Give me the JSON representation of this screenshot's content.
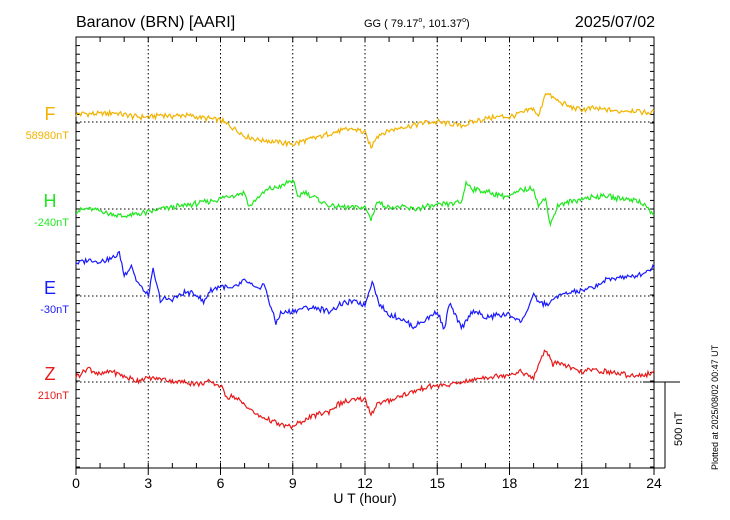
{
  "header": {
    "station": "Baranov (BRN)  [AARI]",
    "coords_prefix": "GG ( 79.17",
    "coords_sep": ", 101.37",
    "coords_suffix": ")",
    "degree_mark": "o",
    "date": "2025/07/02"
  },
  "footer": {
    "plotted_note": "Plotted at 2025/08/02 00:47 UT",
    "scale_label": "500 nT"
  },
  "chart_data": {
    "type": "line",
    "title": "Baranov (BRN)  [AARI]",
    "xlabel": "U T (hour)",
    "ylabel": "",
    "xlim": [
      0,
      24
    ],
    "x_ticks": [
      "0",
      "3",
      "6",
      "9",
      "12",
      "15",
      "18",
      "21",
      "24"
    ],
    "grid": true,
    "scale_bar_nT": 500,
    "series": [
      {
        "name": "F",
        "baseline_label": "58980nT",
        "baseline_nT": 58980,
        "color": "#f2b300",
        "x": [
          0,
          0.5,
          1,
          1.5,
          2,
          2.5,
          3,
          3.5,
          4,
          4.5,
          5,
          5.5,
          6,
          6.5,
          7,
          7.5,
          8,
          8.5,
          9,
          9.5,
          10,
          10.5,
          11,
          11.5,
          12,
          12.25,
          12.5,
          13,
          13.5,
          14,
          14.5,
          15,
          15.5,
          16,
          16.5,
          17,
          17.5,
          18,
          18.5,
          19,
          19.2,
          19.5,
          20,
          20.5,
          21,
          21.5,
          22,
          22.5,
          23,
          23.5,
          24
        ],
        "y": [
          45,
          50,
          45,
          55,
          40,
          30,
          30,
          40,
          35,
          40,
          30,
          20,
          10,
          -30,
          -80,
          -100,
          -110,
          -120,
          -130,
          -110,
          -90,
          -70,
          -50,
          -40,
          -60,
          -150,
          -80,
          -50,
          -30,
          -20,
          0,
          0,
          -10,
          -20,
          0,
          20,
          30,
          30,
          50,
          80,
          30,
          170,
          120,
          90,
          70,
          80,
          70,
          60,
          70,
          60,
          55
        ]
      },
      {
        "name": "H",
        "baseline_label": "-240nT",
        "baseline_nT": -240,
        "color": "#1fe81f",
        "x": [
          0,
          0.5,
          1,
          1.5,
          2,
          2.5,
          3,
          3.5,
          4,
          4.5,
          5,
          5.5,
          6,
          6.5,
          7,
          7.2,
          7.5,
          8,
          8.5,
          9,
          9.2,
          9.5,
          10,
          10.5,
          11,
          11.5,
          12,
          12.25,
          12.5,
          13,
          13.5,
          14,
          14.5,
          15,
          15.5,
          16,
          16.2,
          16.5,
          17,
          17.5,
          18,
          18.5,
          19,
          19.2,
          19.5,
          19.7,
          20,
          20.5,
          21,
          21.5,
          22,
          22.5,
          23,
          23.5,
          24
        ],
        "y": [
          -10,
          0,
          -10,
          -30,
          -45,
          -30,
          -20,
          0,
          10,
          20,
          30,
          45,
          60,
          80,
          95,
          10,
          60,
          115,
          130,
          170,
          70,
          100,
          60,
          20,
          10,
          10,
          10,
          -60,
          40,
          10,
          10,
          0,
          10,
          20,
          30,
          40,
          150,
          115,
          100,
          85,
          70,
          110,
          120,
          20,
          60,
          -90,
          20,
          40,
          60,
          70,
          80,
          60,
          60,
          40,
          -40
        ]
      },
      {
        "name": "E",
        "baseline_label": "-30nT",
        "baseline_nT": -30,
        "color": "#1a1aff",
        "x": [
          0,
          0.5,
          1,
          1.5,
          1.8,
          2,
          2.3,
          2.5,
          3,
          3.2,
          3.5,
          4,
          4.5,
          5,
          5.3,
          5.5,
          6,
          6.5,
          7,
          7.5,
          7.8,
          8,
          8.3,
          8.5,
          9,
          9.5,
          10,
          10.5,
          11,
          11.5,
          12,
          12.3,
          12.6,
          13,
          13.5,
          14,
          14.5,
          15,
          15.3,
          15.5,
          16,
          16.5,
          17,
          17.5,
          18,
          18.5,
          19,
          19.3,
          19.6,
          20,
          20.5,
          21,
          21.5,
          22,
          22.5,
          23,
          23.5,
          24
        ],
        "y": [
          190,
          210,
          200,
          220,
          250,
          120,
          180,
          90,
          0,
          150,
          -20,
          -20,
          20,
          10,
          -40,
          20,
          60,
          40,
          90,
          40,
          70,
          -20,
          -160,
          -100,
          -90,
          -70,
          -70,
          -90,
          -50,
          -30,
          -50,
          90,
          -50,
          -110,
          -130,
          -180,
          -140,
          -90,
          -200,
          -40,
          -190,
          -80,
          -130,
          -110,
          -110,
          -150,
          0,
          -40,
          -50,
          0,
          20,
          30,
          50,
          90,
          110,
          110,
          130,
          170
        ]
      },
      {
        "name": "Z",
        "baseline_label": "210nT",
        "baseline_nT": 210,
        "color": "#e81a1a",
        "x": [
          0,
          0.5,
          1,
          1.5,
          2,
          2.5,
          3,
          3.5,
          4,
          4.5,
          5,
          5.5,
          6,
          6.3,
          6.5,
          7,
          7.5,
          8,
          8.5,
          9,
          9.5,
          10,
          10.5,
          11,
          11.5,
          12,
          12.25,
          12.5,
          13,
          13.5,
          14,
          14.5,
          15,
          15.5,
          16,
          16.5,
          17,
          17.5,
          18,
          18.5,
          19,
          19.2,
          19.5,
          19.8,
          20,
          20.5,
          21,
          21.5,
          22,
          22.5,
          23,
          23.5,
          24
        ],
        "y": [
          30,
          80,
          40,
          65,
          30,
          10,
          20,
          20,
          5,
          0,
          -10,
          0,
          -20,
          -90,
          -80,
          -130,
          -190,
          -220,
          -250,
          -260,
          -220,
          -190,
          -170,
          -120,
          -110,
          -100,
          -190,
          -130,
          -110,
          -80,
          -60,
          -30,
          -20,
          -20,
          0,
          10,
          30,
          30,
          50,
          60,
          20,
          100,
          190,
          100,
          120,
          80,
          60,
          70,
          60,
          50,
          40,
          40,
          50
        ]
      }
    ]
  }
}
